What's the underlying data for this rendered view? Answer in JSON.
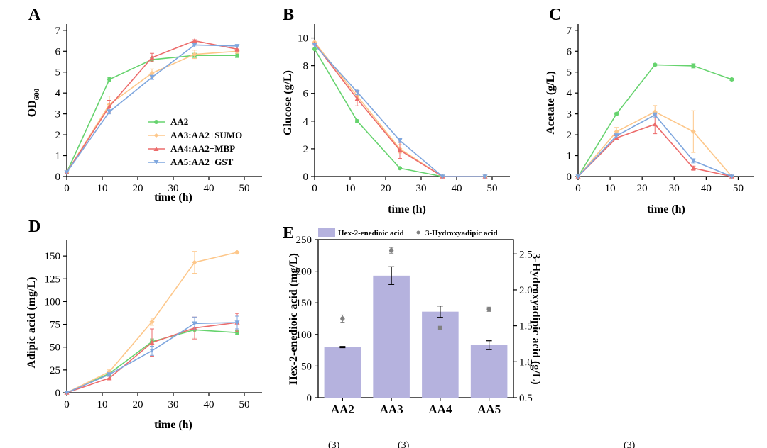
{
  "colors": {
    "AA2": "#66d36e",
    "AA3": "#fdc78a",
    "AA4": "#ec6b6b",
    "AA5": "#7ea6de",
    "bar": "#b5b2de",
    "scatter": "#808080"
  },
  "legend": [
    "AA2",
    "AA3:AA2+SUMO",
    "AA4:AA2+MBP",
    "AA5:AA2+GST"
  ],
  "caption_fragments": [
    "(3)",
    "(3)",
    "(3)"
  ],
  "chart_data": [
    {
      "id": "A",
      "letter": "A",
      "type": "line",
      "xlabel": "time (h)",
      "ylabel_main": "OD",
      "ylabel_sub": "600",
      "xlim": [
        0,
        55
      ],
      "ylim": [
        0,
        7.3
      ],
      "xticks": [
        0,
        10,
        20,
        30,
        40,
        50
      ],
      "yticks": [
        0,
        1,
        2,
        3,
        4,
        5,
        6,
        7
      ],
      "x": [
        0,
        12,
        24,
        36,
        48
      ],
      "series": [
        {
          "name": "AA2",
          "values": [
            0.2,
            4.65,
            5.6,
            5.8,
            5.8
          ],
          "err": [
            0,
            0.1,
            0.1,
            0.1,
            0.1
          ]
        },
        {
          "name": "AA3:AA2+SUMO",
          "values": [
            0.2,
            3.45,
            4.95,
            5.85,
            6.0
          ],
          "err": [
            0,
            0.4,
            0.2,
            0.2,
            0.1
          ]
        },
        {
          "name": "AA4:AA2+MBP",
          "values": [
            0.2,
            3.35,
            5.7,
            6.5,
            6.1
          ],
          "err": [
            0,
            0.3,
            0.2,
            0.05,
            0.1
          ]
        },
        {
          "name": "AA5:AA2+GST",
          "values": [
            0.2,
            3.1,
            4.75,
            6.3,
            6.25
          ],
          "err": [
            0,
            0.1,
            0.1,
            0.1,
            0.05
          ]
        }
      ]
    },
    {
      "id": "B",
      "letter": "B",
      "type": "line",
      "xlabel": "time (h)",
      "ylabel": "Glucose (g/L)",
      "xlim": [
        0,
        55
      ],
      "ylim": [
        0,
        11
      ],
      "xticks": [
        0,
        10,
        20,
        30,
        40,
        50
      ],
      "yticks": [
        0,
        2,
        4,
        6,
        8,
        10
      ],
      "x": [
        0,
        12,
        24,
        36,
        48
      ],
      "series": [
        {
          "name": "AA2",
          "values": [
            9.2,
            4.0,
            0.6,
            0.0,
            0.0
          ],
          "err": [
            0,
            0.1,
            0.05,
            0,
            0
          ]
        },
        {
          "name": "AA3:AA2+SUMO",
          "values": [
            9.7,
            5.8,
            2.0,
            0.0,
            0.0
          ],
          "err": [
            0,
            0.5,
            0.3,
            0,
            0
          ]
        },
        {
          "name": "AA4:AA2+MBP",
          "values": [
            9.6,
            5.6,
            1.9,
            0.0,
            0.0
          ],
          "err": [
            0,
            0.5,
            0.6,
            0,
            0
          ]
        },
        {
          "name": "AA5:AA2+GST",
          "values": [
            9.5,
            6.1,
            2.6,
            0.0,
            0.0
          ],
          "err": [
            0,
            0.2,
            0.15,
            0,
            0
          ]
        }
      ]
    },
    {
      "id": "C",
      "letter": "C",
      "type": "line",
      "xlabel": "time (h)",
      "ylabel": "Acetate (g/L)",
      "xlim": [
        0,
        55
      ],
      "ylim": [
        0,
        7.3
      ],
      "xticks": [
        0,
        10,
        20,
        30,
        40,
        50
      ],
      "yticks": [
        0,
        1,
        2,
        3,
        4,
        5,
        6,
        7
      ],
      "x": [
        0,
        12,
        24,
        36,
        48
      ],
      "series": [
        {
          "name": "AA2",
          "values": [
            0.0,
            3.0,
            5.35,
            5.3,
            4.65
          ],
          "err": [
            0,
            0.05,
            0.05,
            0.1,
            0.05
          ]
        },
        {
          "name": "AA3:AA2+SUMO",
          "values": [
            0.0,
            2.15,
            3.1,
            2.15,
            0.0
          ],
          "err": [
            0,
            0.2,
            0.3,
            1.0,
            0
          ]
        },
        {
          "name": "AA4:AA2+MBP",
          "values": [
            0.0,
            1.85,
            2.5,
            0.4,
            0.0
          ],
          "err": [
            0,
            0.1,
            0.45,
            0.1,
            0
          ]
        },
        {
          "name": "AA5:AA2+GST",
          "values": [
            0.0,
            1.95,
            2.95,
            0.75,
            0.0
          ],
          "err": [
            0,
            0.1,
            0.1,
            0.1,
            0
          ]
        }
      ]
    },
    {
      "id": "D",
      "letter": "D",
      "type": "line",
      "xlabel": "time (h)",
      "ylabel": "Adipic acid (mg/L)",
      "xlim": [
        0,
        55
      ],
      "ylim": [
        0,
        168
      ],
      "xticks": [
        0,
        10,
        20,
        30,
        40,
        50
      ],
      "yticks": [
        0,
        25,
        50,
        75,
        100,
        125,
        150
      ],
      "x": [
        0,
        12,
        24,
        36,
        48
      ],
      "series": [
        {
          "name": "AA2",
          "values": [
            0,
            21,
            56,
            69,
            66
          ],
          "err": [
            0,
            2,
            3,
            8,
            2
          ]
        },
        {
          "name": "AA3:AA2+SUMO",
          "values": [
            0,
            23,
            78,
            143,
            154
          ],
          "err": [
            0,
            2,
            4,
            12,
            1
          ]
        },
        {
          "name": "AA4:AA2+MBP",
          "values": [
            0,
            16,
            55,
            71,
            77
          ],
          "err": [
            0,
            2,
            15,
            12,
            10
          ]
        },
        {
          "name": "AA5:AA2+GST",
          "values": [
            0,
            20,
            46,
            76,
            77
          ],
          "err": [
            0,
            2,
            5,
            7,
            7
          ]
        }
      ]
    },
    {
      "id": "E",
      "letter": "E",
      "type": "bar",
      "categories": [
        "AA2",
        "AA3",
        "AA4",
        "AA5"
      ],
      "ylabel": "Hex-2-enedioic acid (mg/L)",
      "y2label": "3-Hydroxyadipic acid (g/L)",
      "ylim": [
        0,
        250
      ],
      "yticks": [
        0,
        50,
        100,
        150,
        200,
        250
      ],
      "y2lim": [
        0.5,
        2.7
      ],
      "y2ticks": [
        0.5,
        1.0,
        1.5,
        2.0,
        2.5
      ],
      "legend": [
        "Hex-2-enedioic acid",
        "3-Hydroxyadipic acid"
      ],
      "bars": {
        "name": "Hex-2-enedioic acid",
        "values": [
          80,
          193,
          136,
          83
        ],
        "err": [
          1,
          14,
          9,
          7
        ]
      },
      "points": {
        "name": "3-Hydroxyadipic acid",
        "values": [
          1.6,
          2.55,
          1.47,
          1.73
        ],
        "err": [
          0.05,
          0.04,
          0.0,
          0.03
        ]
      }
    }
  ]
}
